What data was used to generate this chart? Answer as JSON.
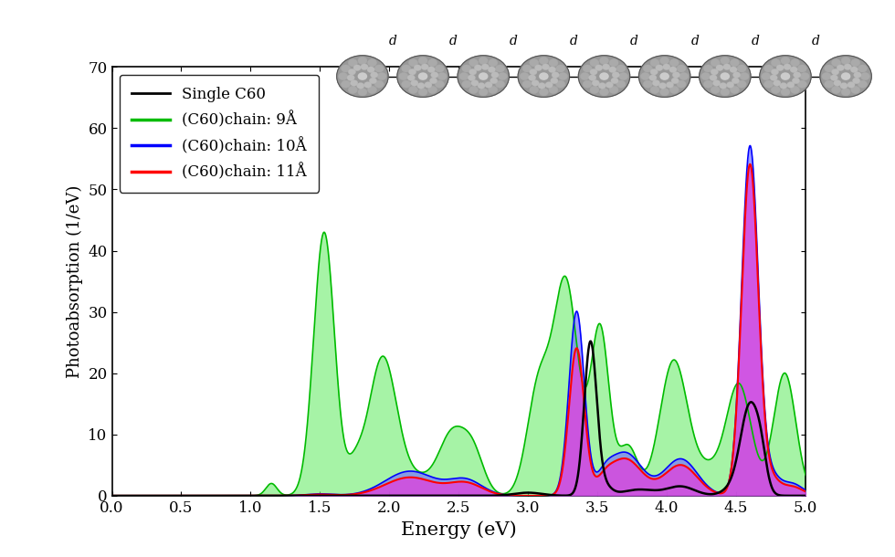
{
  "title": "",
  "xlabel": "Energy (eV)",
  "ylabel": "Photoabsorption (1/eV)",
  "xlim": [
    0.0,
    5.0
  ],
  "ylim": [
    0,
    70
  ],
  "xticks": [
    0.0,
    0.5,
    1.0,
    1.5,
    2.0,
    2.5,
    3.0,
    3.5,
    4.0,
    4.5,
    5.0
  ],
  "yticks": [
    0,
    10,
    20,
    30,
    40,
    50,
    60,
    70
  ],
  "legend_labels": [
    "Single C60",
    "(C60)chain: 9Å",
    "(C60)chain: 10Å",
    "(C60)chain: 11Å"
  ],
  "line_colors": [
    "black",
    "#00bb00",
    "blue",
    "red"
  ],
  "green_fill": "#77ee77",
  "blue_fill": "#7777ff",
  "red_fill": "#dd44dd",
  "background_color": "#ffffff",
  "n_molecules": 9,
  "molecule_color": "#888888",
  "molecule_edge": "#444444"
}
